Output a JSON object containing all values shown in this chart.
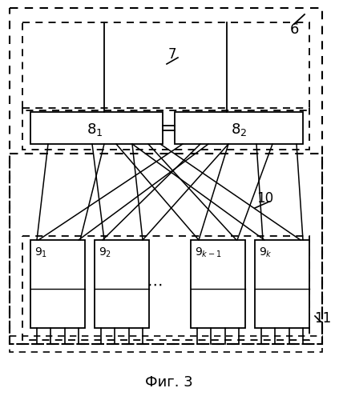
{
  "title": "Фиг. 3",
  "bg_color": "#ffffff",
  "line_color": "#000000",
  "fig_width": 4.23,
  "fig_height": 5.0,
  "dpi": 100
}
